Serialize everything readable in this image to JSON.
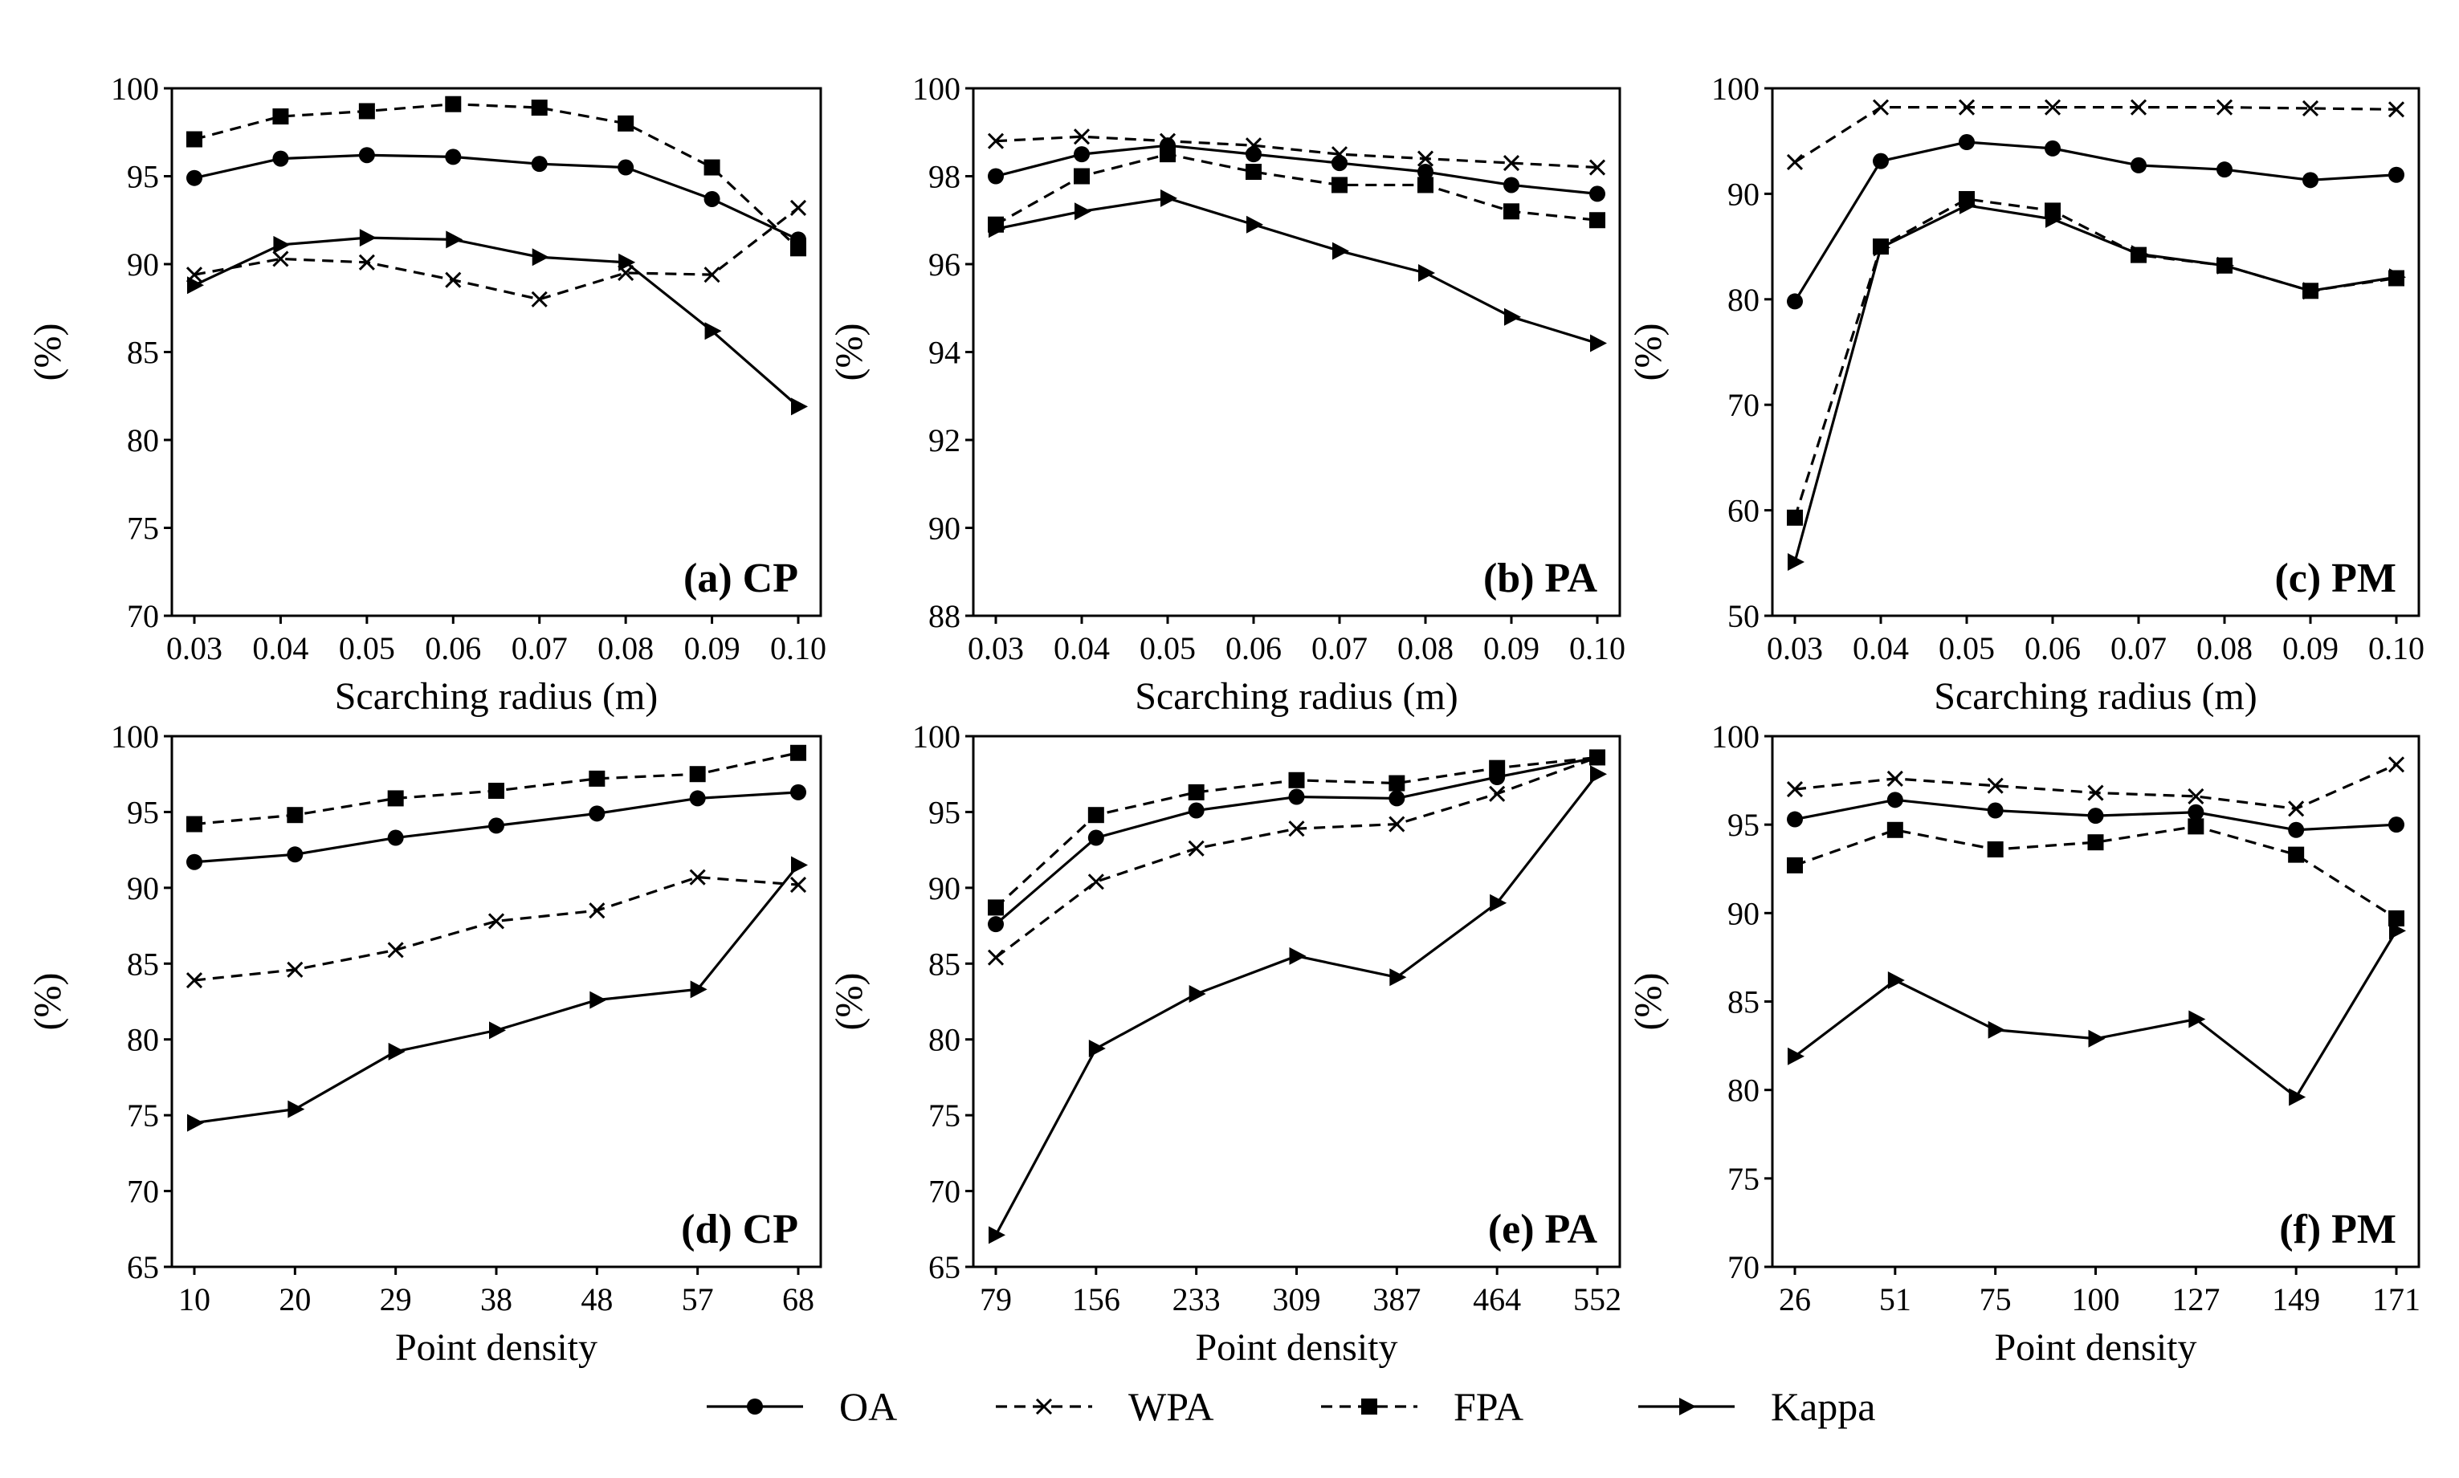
{
  "legend": [
    {
      "key": "oa",
      "label": "OA"
    },
    {
      "key": "wpa",
      "label": "WPA"
    },
    {
      "key": "fpa",
      "label": "FPA"
    },
    {
      "key": "kappa",
      "label": "Kappa"
    }
  ],
  "chart_data": [
    {
      "type": "line",
      "panel_label": "(a) CP",
      "xlabel": "Scarching radius (m)",
      "ylabel": "(%)",
      "categories": [
        "0.03",
        "0.04",
        "0.05",
        "0.06",
        "0.07",
        "0.08",
        "0.09",
        "0.10"
      ],
      "ylim": [
        70,
        100
      ],
      "yticks": [
        70,
        75,
        80,
        85,
        90,
        95,
        100
      ],
      "series": [
        {
          "name": "OA",
          "values": [
            94.9,
            96.0,
            96.2,
            96.1,
            95.7,
            95.5,
            93.7,
            91.4
          ]
        },
        {
          "name": "WPA",
          "values": [
            89.4,
            90.3,
            90.1,
            89.1,
            88.0,
            89.5,
            89.4,
            93.2
          ]
        },
        {
          "name": "FPA",
          "values": [
            97.1,
            98.4,
            98.7,
            99.1,
            98.9,
            98.0,
            95.5,
            90.9
          ]
        },
        {
          "name": "Kappa",
          "values": [
            88.8,
            91.1,
            91.5,
            91.4,
            90.4,
            90.1,
            86.2,
            81.9
          ]
        }
      ]
    },
    {
      "type": "line",
      "panel_label": "(b) PA",
      "xlabel": "Scarching radius (m)",
      "ylabel": "(%)",
      "categories": [
        "0.03",
        "0.04",
        "0.05",
        "0.06",
        "0.07",
        "0.08",
        "0.09",
        "0.10"
      ],
      "ylim": [
        88,
        100
      ],
      "yticks": [
        88,
        90,
        92,
        94,
        96,
        98,
        100
      ],
      "series": [
        {
          "name": "OA",
          "values": [
            98.0,
            98.5,
            98.7,
            98.5,
            98.3,
            98.1,
            97.8,
            97.6
          ]
        },
        {
          "name": "WPA",
          "values": [
            98.8,
            98.9,
            98.8,
            98.7,
            98.5,
            98.4,
            98.3,
            98.2
          ]
        },
        {
          "name": "FPA",
          "values": [
            96.9,
            98.0,
            98.5,
            98.1,
            97.8,
            97.8,
            97.2,
            97.0
          ]
        },
        {
          "name": "Kappa",
          "values": [
            96.8,
            97.2,
            97.5,
            96.9,
            96.3,
            95.8,
            94.8,
            94.2
          ]
        }
      ]
    },
    {
      "type": "line",
      "panel_label": "(c) PM",
      "xlabel": "Scarching radius (m)",
      "ylabel": "(%)",
      "categories": [
        "0.03",
        "0.04",
        "0.05",
        "0.06",
        "0.07",
        "0.08",
        "0.09",
        "0.10"
      ],
      "ylim": [
        50,
        100
      ],
      "yticks": [
        50,
        60,
        70,
        80,
        90,
        100
      ],
      "series": [
        {
          "name": "OA",
          "values": [
            79.8,
            93.1,
            94.9,
            94.3,
            92.7,
            92.3,
            91.3,
            91.8
          ]
        },
        {
          "name": "WPA",
          "values": [
            93.0,
            98.2,
            98.2,
            98.2,
            98.2,
            98.2,
            98.1,
            98.0
          ]
        },
        {
          "name": "FPA",
          "values": [
            59.3,
            85.0,
            89.5,
            88.4,
            84.2,
            83.2,
            80.8,
            82.0
          ]
        },
        {
          "name": "Kappa",
          "values": [
            55.1,
            84.9,
            88.9,
            87.6,
            84.3,
            83.2,
            80.8,
            82.1
          ]
        }
      ]
    },
    {
      "type": "line",
      "panel_label": "(d) CP",
      "xlabel": "Point density",
      "ylabel": "(%)",
      "categories": [
        "10",
        "20",
        "29",
        "38",
        "48",
        "57",
        "68"
      ],
      "ylim": [
        65,
        100
      ],
      "yticks": [
        65,
        70,
        75,
        80,
        85,
        90,
        95,
        100
      ],
      "series": [
        {
          "name": "OA",
          "values": [
            91.7,
            92.2,
            93.3,
            94.1,
            94.9,
            95.9,
            96.3
          ]
        },
        {
          "name": "WPA",
          "values": [
            83.9,
            84.6,
            85.9,
            87.8,
            88.5,
            90.7,
            90.2
          ]
        },
        {
          "name": "FPA",
          "values": [
            94.2,
            94.8,
            95.9,
            96.4,
            97.2,
            97.5,
            98.9
          ]
        },
        {
          "name": "Kappa",
          "values": [
            74.5,
            75.4,
            79.2,
            80.6,
            82.6,
            83.3,
            91.5
          ]
        }
      ]
    },
    {
      "type": "line",
      "panel_label": "(e) PA",
      "xlabel": "Point density",
      "ylabel": "(%)",
      "categories": [
        "79",
        "156",
        "233",
        "309",
        "387",
        "464",
        "552"
      ],
      "ylim": [
        65,
        100
      ],
      "yticks": [
        65,
        70,
        75,
        80,
        85,
        90,
        95,
        100
      ],
      "series": [
        {
          "name": "OA",
          "values": [
            87.6,
            93.3,
            95.1,
            96.0,
            95.9,
            97.3,
            98.6
          ]
        },
        {
          "name": "WPA",
          "values": [
            85.4,
            90.4,
            92.6,
            93.9,
            94.2,
            96.2,
            98.6
          ]
        },
        {
          "name": "FPA",
          "values": [
            88.7,
            94.8,
            96.3,
            97.1,
            96.9,
            97.9,
            98.6
          ]
        },
        {
          "name": "Kappa",
          "values": [
            67.1,
            79.4,
            83.0,
            85.5,
            84.1,
            89.0,
            97.5
          ]
        }
      ]
    },
    {
      "type": "line",
      "panel_label": "(f) PM",
      "xlabel": "Point density",
      "ylabel": "(%)",
      "categories": [
        "26",
        "51",
        "75",
        "100",
        "127",
        "149",
        "171"
      ],
      "ylim": [
        70,
        100
      ],
      "yticks": [
        70,
        75,
        80,
        85,
        90,
        95,
        100
      ],
      "series": [
        {
          "name": "OA",
          "values": [
            95.3,
            96.4,
            95.8,
            95.5,
            95.7,
            94.7,
            95.0
          ]
        },
        {
          "name": "WPA",
          "values": [
            97.0,
            97.6,
            97.2,
            96.8,
            96.6,
            95.9,
            98.4
          ]
        },
        {
          "name": "FPA",
          "values": [
            92.7,
            94.7,
            93.6,
            94.0,
            94.9,
            93.3,
            89.7
          ]
        },
        {
          "name": "Kappa",
          "values": [
            81.9,
            86.2,
            83.4,
            82.9,
            84.0,
            79.6,
            89.0
          ]
        }
      ]
    }
  ]
}
